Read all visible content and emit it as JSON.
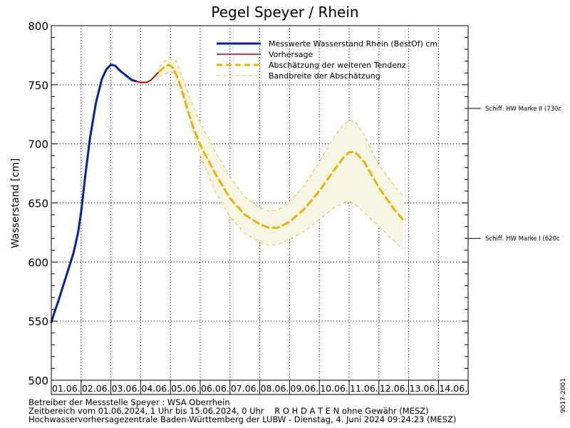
{
  "chart_data": {
    "type": "line",
    "title": "Pegel Speyer / Rhein",
    "ylabel": "Wasserstand [cm]",
    "xlabel": "",
    "ylim": [
      500,
      800
    ],
    "yticks": [
      500,
      550,
      600,
      650,
      700,
      750,
      800
    ],
    "x_unit": "days since 01.06.2024 0 Uhr",
    "xlim": [
      1,
      14
    ],
    "categories": [
      "01.06.",
      "02.06.",
      "03.06.",
      "04.06.",
      "05.06.",
      "06.06.",
      "07.06.",
      "08.06.",
      "09.06.",
      "10.06.",
      "11.06.",
      "12.06.",
      "13.06.",
      "14.06."
    ],
    "grid": true,
    "legend_position": "top-right",
    "legend": {
      "measured": "Messwerte Wasserstand Rhein (BestOf)",
      "measured_unit": "cm",
      "forecast": "Vorhersage",
      "estimate": "Abschätzung der weiteren Tendenz",
      "band": "Bandbreite der Abschätzung"
    },
    "series": [
      {
        "name": "Messwerte Wasserstand Rhein (BestOf)",
        "color": "#0020b0",
        "points": [
          [
            1.0,
            549
          ],
          [
            1.1,
            557
          ],
          [
            1.25,
            568
          ],
          [
            1.5,
            588
          ],
          [
            1.75,
            608
          ],
          [
            1.9,
            625
          ],
          [
            2.0,
            642
          ],
          [
            2.15,
            675
          ],
          [
            2.3,
            705
          ],
          [
            2.5,
            735
          ],
          [
            2.7,
            755
          ],
          [
            2.85,
            763
          ],
          [
            3.0,
            767
          ],
          [
            3.15,
            766
          ],
          [
            3.3,
            762
          ],
          [
            3.5,
            758
          ],
          [
            3.7,
            754
          ],
          [
            3.85,
            753
          ]
        ]
      },
      {
        "name": "Vorhersage",
        "color": "#cc0000",
        "points": [
          [
            3.85,
            753
          ],
          [
            4.0,
            752
          ],
          [
            4.2,
            752
          ],
          [
            4.35,
            754
          ],
          [
            4.5,
            758
          ],
          [
            4.62,
            761
          ]
        ]
      },
      {
        "name": "Abschätzung der weiteren Tendenz",
        "color": "#f0b000",
        "points": [
          [
            4.62,
            761
          ],
          [
            4.8,
            765
          ],
          [
            4.95,
            767
          ],
          [
            5.1,
            764
          ],
          [
            5.3,
            752
          ],
          [
            5.5,
            735
          ],
          [
            5.75,
            715
          ],
          [
            6.0,
            699
          ],
          [
            6.5,
            675
          ],
          [
            7.0,
            654
          ],
          [
            7.5,
            640
          ],
          [
            8.0,
            632
          ],
          [
            8.3,
            629
          ],
          [
            8.6,
            629
          ],
          [
            9.0,
            634
          ],
          [
            9.5,
            645
          ],
          [
            10.0,
            660
          ],
          [
            10.5,
            678
          ],
          [
            10.8,
            688
          ],
          [
            11.0,
            693
          ],
          [
            11.2,
            693
          ],
          [
            11.5,
            685
          ],
          [
            12.0,
            663
          ],
          [
            12.5,
            645
          ],
          [
            12.8,
            636
          ]
        ]
      }
    ],
    "band": {
      "name": "Bandbreite der Abschätzung",
      "color": "#e8c040",
      "fill": "#f7f6e4",
      "upper": [
        [
          4.62,
          765
        ],
        [
          4.8,
          770
        ],
        [
          5.0,
          772
        ],
        [
          5.2,
          770
        ],
        [
          5.5,
          750
        ],
        [
          5.75,
          732
        ],
        [
          6.0,
          718
        ],
        [
          6.5,
          694
        ],
        [
          7.0,
          672
        ],
        [
          7.5,
          655
        ],
        [
          8.0,
          646
        ],
        [
          8.3,
          643
        ],
        [
          8.6,
          644
        ],
        [
          9.0,
          651
        ],
        [
          9.5,
          665
        ],
        [
          10.0,
          685
        ],
        [
          10.5,
          706
        ],
        [
          10.8,
          716
        ],
        [
          11.0,
          720
        ],
        [
          11.2,
          719
        ],
        [
          11.5,
          708
        ],
        [
          12.0,
          682
        ],
        [
          12.5,
          665
        ],
        [
          12.8,
          656
        ]
      ],
      "lower": [
        [
          4.62,
          757
        ],
        [
          4.8,
          759
        ],
        [
          5.0,
          761
        ],
        [
          5.2,
          759
        ],
        [
          5.5,
          740
        ],
        [
          5.75,
          712
        ],
        [
          6.0,
          690
        ],
        [
          6.5,
          660
        ],
        [
          7.0,
          638
        ],
        [
          7.5,
          624
        ],
        [
          8.0,
          617
        ],
        [
          8.3,
          614
        ],
        [
          8.6,
          615
        ],
        [
          9.0,
          619
        ],
        [
          9.5,
          626
        ],
        [
          10.0,
          636
        ],
        [
          10.5,
          646
        ],
        [
          10.8,
          650
        ],
        [
          11.0,
          651
        ],
        [
          11.2,
          649
        ],
        [
          11.5,
          642
        ],
        [
          12.0,
          630
        ],
        [
          12.5,
          618
        ],
        [
          12.8,
          611
        ]
      ]
    },
    "reference_lines": [
      {
        "label": "Schiff. HW Marke II (730c",
        "value": 730
      },
      {
        "label": "Schiff. HW Marke I (620c",
        "value": 620
      }
    ]
  },
  "footer": {
    "line1": "Betreiber der Messstelle Speyer : WSA Oberrhein",
    "line2": "Zeitbereich vom 01.06.2024, 1 Uhr bis 15.06.2024, 0 Uhr    R O H D A T E N ohne Gewähr (MESZ)",
    "line3": "Hochwasservorhersagezentrale Baden-Württemberg der LUBW - Dienstag, 4. Juni 2024 09:24:23 (MESZ)",
    "code": "9017-2001"
  }
}
